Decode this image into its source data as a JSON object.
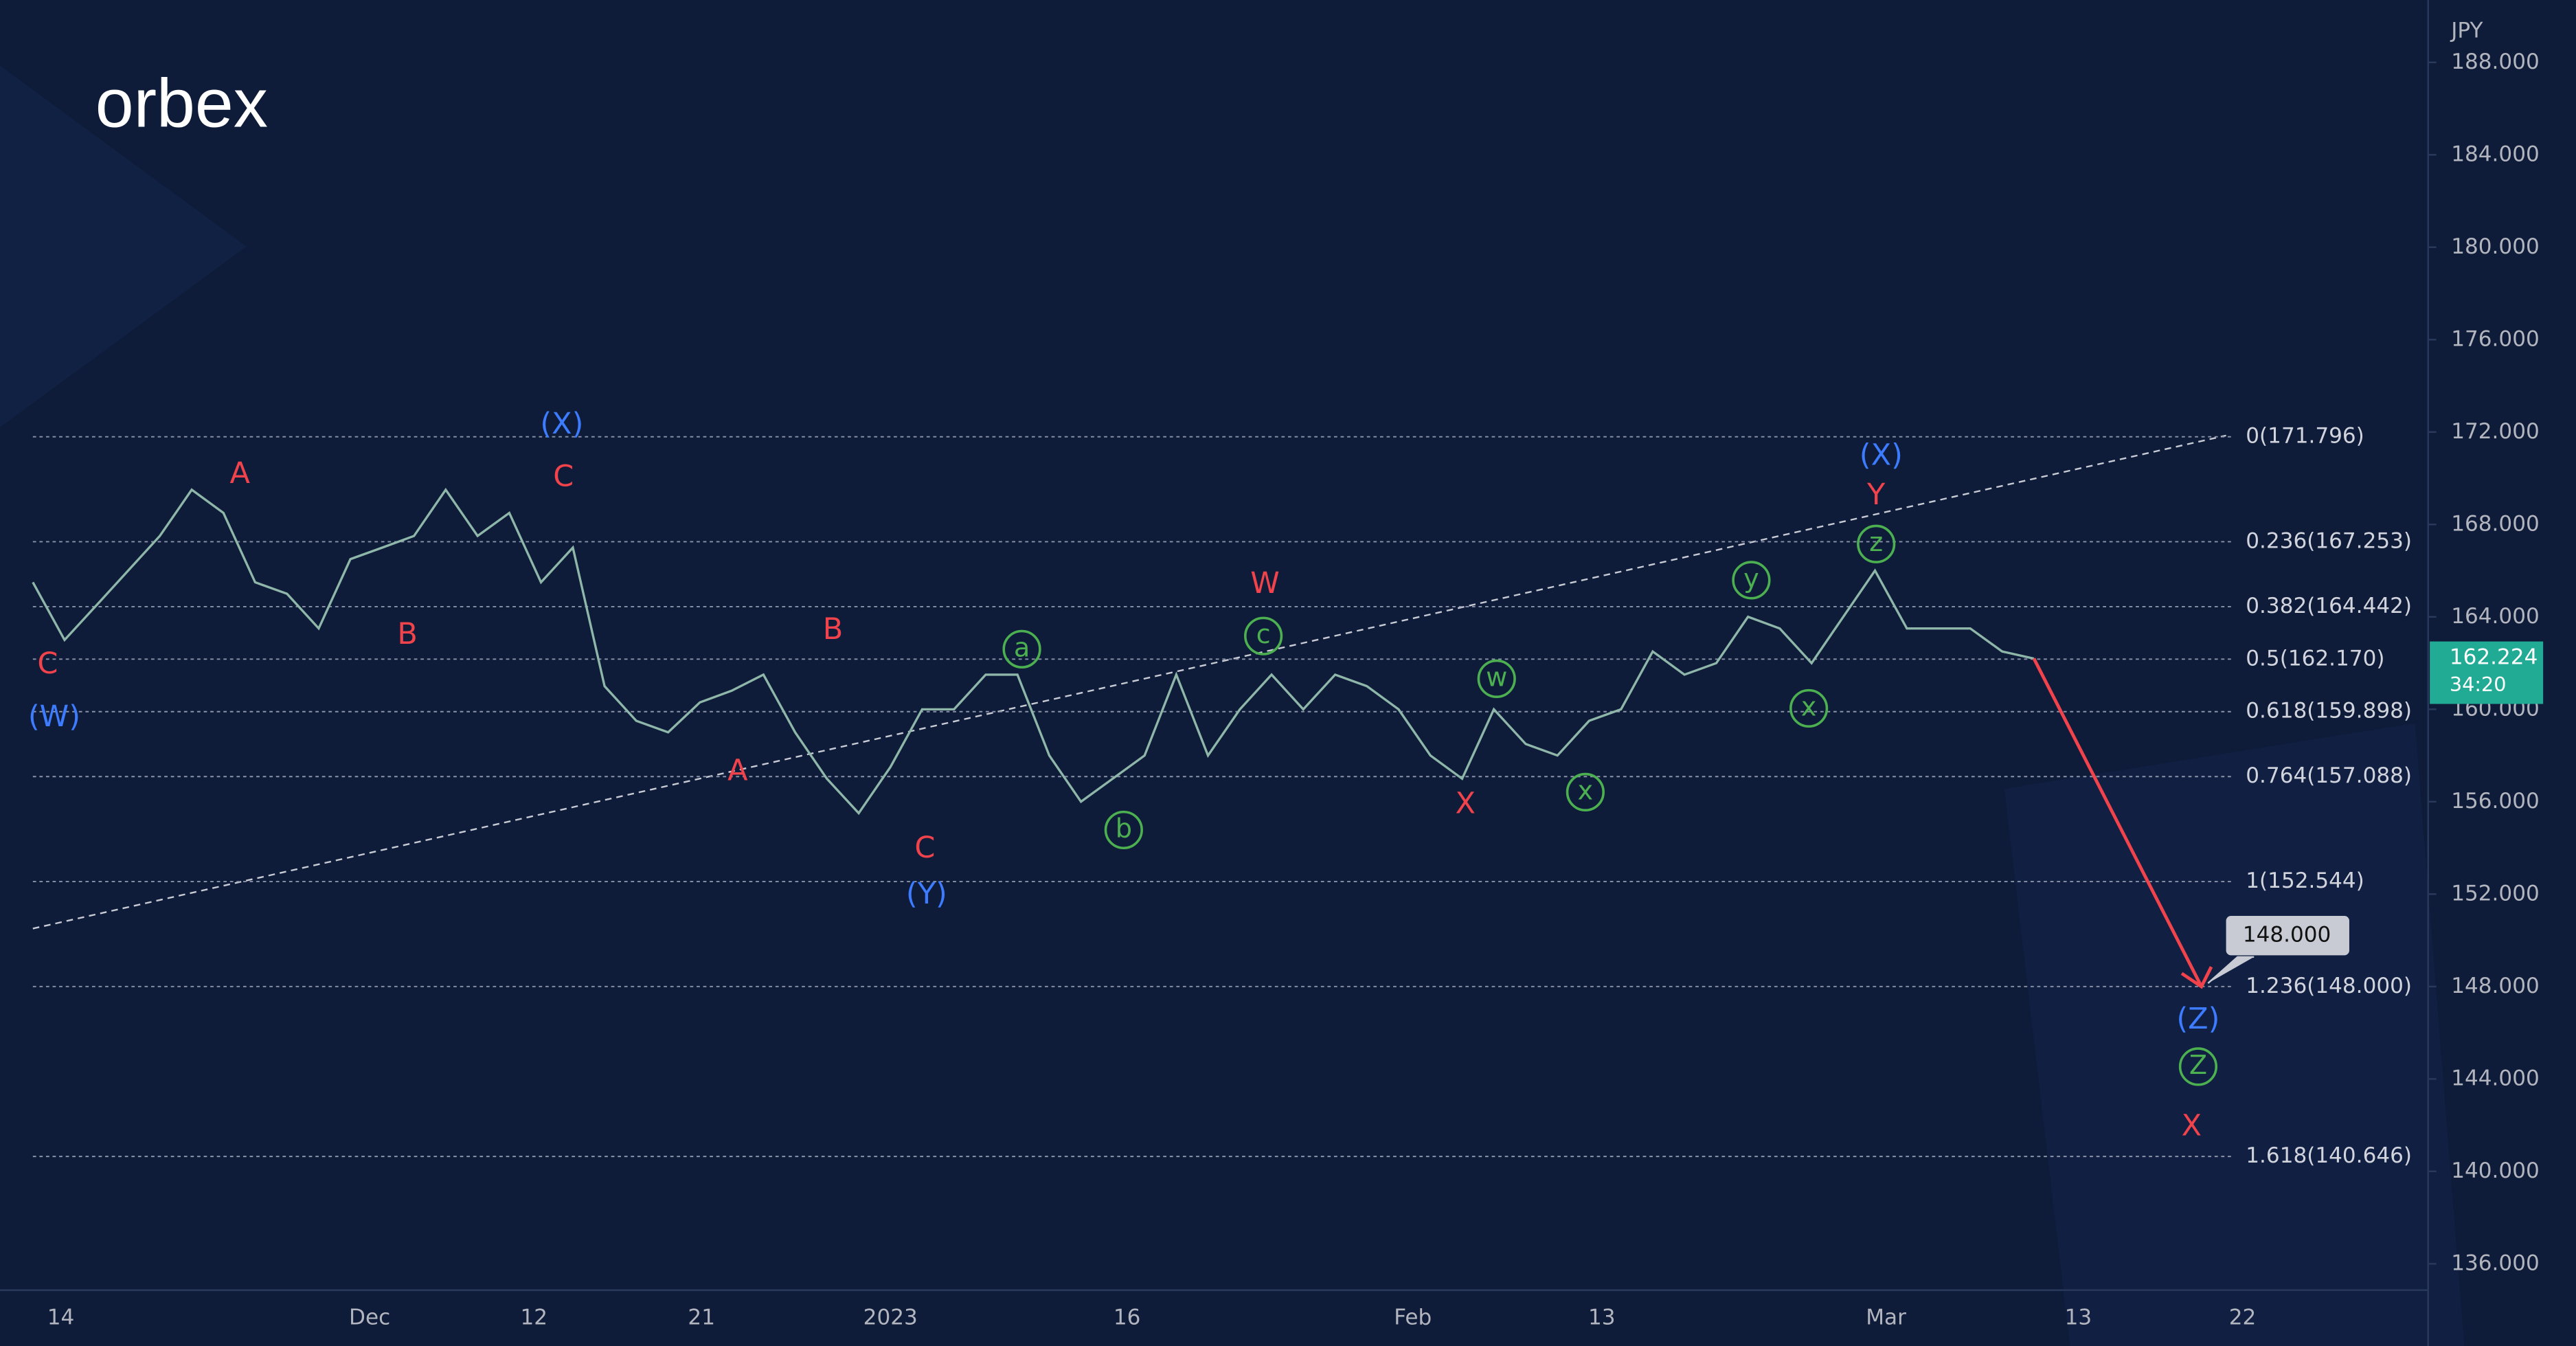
{
  "chart_data": {
    "type": "line",
    "logo": "orbex",
    "currency": "JPY",
    "color": "#8fb7a9",
    "values": [
      165.5,
      163,
      164.5,
      166,
      167.5,
      169.5,
      168.5,
      165.5,
      165,
      163.5,
      166.5,
      167,
      167.5,
      169.5,
      167.5,
      168.5,
      165.5,
      167,
      161,
      159.5,
      159,
      160.3,
      160.8,
      161.5,
      159,
      157,
      155.5,
      157.5,
      160,
      160,
      161.5,
      161.5,
      158,
      156,
      157,
      158,
      161.5,
      158,
      160,
      161.5,
      160,
      161.5,
      161,
      160,
      158,
      157,
      160,
      158.5,
      158,
      159.5,
      160,
      162.5,
      161.5,
      162,
      164,
      163.5,
      162,
      164,
      166,
      163.5,
      163.5,
      163.5,
      162.5,
      162.2
    ],
    "ylim": [
      134.86,
      190.7
    ],
    "yticks": [
      {
        "value": 188,
        "label": "188.000"
      },
      {
        "value": 184,
        "label": "184.000"
      },
      {
        "value": 180,
        "label": "180.000"
      },
      {
        "value": 176,
        "label": "176.000"
      },
      {
        "value": 172,
        "label": "172.000"
      },
      {
        "value": 168,
        "label": "168.000"
      },
      {
        "value": 164,
        "label": "164.000"
      },
      {
        "value": 160,
        "label": "160.000"
      },
      {
        "value": 156,
        "label": "156.000"
      },
      {
        "value": 152,
        "label": "152.000"
      },
      {
        "value": 148,
        "label": "148.000"
      },
      {
        "value": 144,
        "label": "144.000"
      },
      {
        "value": 140,
        "label": "140.000"
      },
      {
        "value": 136,
        "label": "136.000"
      }
    ],
    "xticks": [
      "14",
      "Dec",
      "12",
      "21",
      "2023",
      "16",
      "Feb",
      "13",
      "Mar",
      "13",
      "22"
    ],
    "fib_levels": [
      {
        "value": 171.796,
        "label": "0(171.796)"
      },
      {
        "value": 167.253,
        "label": "0.236(167.253)"
      },
      {
        "value": 164.442,
        "label": "0.382(164.442)"
      },
      {
        "value": 162.17,
        "label": "0.5(162.170)"
      },
      {
        "value": 159.898,
        "label": "0.618(159.898)"
      },
      {
        "value": 157.088,
        "label": "0.764(157.088)"
      },
      {
        "value": 152.544,
        "label": "1(152.544)"
      },
      {
        "value": 148,
        "label": "1.236(148.000)"
      },
      {
        "value": 140.646,
        "label": "1.618(140.646)"
      }
    ],
    "current_price": {
      "value": 162.224,
      "label": "162.224"
    },
    "countdown": "34:20",
    "target": {
      "value": 148,
      "label": "148.000"
    },
    "annotations": [
      {
        "text": "C",
        "color": "#f0434b"
      },
      {
        "text": "(W)",
        "color": "#3d7bff"
      },
      {
        "text": "A",
        "color": "#f0434b"
      },
      {
        "text": "B",
        "color": "#f0434b"
      },
      {
        "text": "(X)",
        "color": "#3d7bff"
      },
      {
        "text": "C",
        "color": "#f0434b"
      },
      {
        "text": "A",
        "color": "#f0434b"
      },
      {
        "text": "B",
        "color": "#f0434b"
      },
      {
        "text": "C",
        "color": "#f0434b"
      },
      {
        "text": "(Y)",
        "color": "#3d7bff"
      },
      {
        "text": "a",
        "color": "#4caf50",
        "circled": true
      },
      {
        "text": "b",
        "color": "#4caf50",
        "circled": true
      },
      {
        "text": "W",
        "color": "#f0434b"
      },
      {
        "text": "c",
        "color": "#4caf50",
        "circled": true
      },
      {
        "text": "w",
        "color": "#4caf50",
        "circled": true
      },
      {
        "text": "X",
        "color": "#f0434b"
      },
      {
        "text": "x",
        "color": "#4caf50",
        "circled": true
      },
      {
        "text": "y",
        "color": "#4caf50",
        "circled": true
      },
      {
        "text": "x",
        "color": "#4caf50",
        "circled": true
      },
      {
        "text": "(X)",
        "color": "#3d7bff"
      },
      {
        "text": "Y",
        "color": "#f0434b"
      },
      {
        "text": "z",
        "color": "#4caf50",
        "circled": true
      },
      {
        "text": "(Z)",
        "color": "#3d7bff"
      },
      {
        "text": "Z",
        "color": "#4caf50",
        "circled": true
      },
      {
        "text": "X",
        "color": "#f0434b"
      }
    ]
  }
}
